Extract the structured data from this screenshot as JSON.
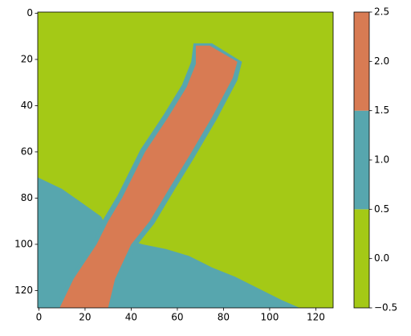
{
  "chart_data": {
    "type": "image",
    "xlim": [
      -0.5,
      127.5
    ],
    "ylim": [
      127.5,
      -0.5
    ],
    "xticks": [
      0,
      20,
      40,
      60,
      80,
      100,
      120
    ],
    "yticks": [
      0,
      20,
      40,
      60,
      80,
      100,
      120
    ],
    "background_value": 0,
    "regions": [
      {
        "value": 1,
        "polygon": [
          [
            -0.5,
            71
          ],
          [
            10,
            76
          ],
          [
            20,
            83
          ],
          [
            27,
            88
          ],
          [
            29,
            92
          ],
          [
            38,
            98
          ],
          [
            45,
            100
          ],
          [
            55,
            102
          ],
          [
            65,
            105
          ],
          [
            75,
            110
          ],
          [
            85,
            114
          ],
          [
            95,
            119
          ],
          [
            105,
            124
          ],
          [
            113,
            127.5
          ],
          [
            -0.5,
            127.5
          ]
        ]
      },
      {
        "value": 1,
        "polygon": [
          [
            67,
            13
          ],
          [
            75,
            13
          ],
          [
            88,
            21
          ],
          [
            86,
            29
          ],
          [
            77,
            46
          ],
          [
            67,
            63
          ],
          [
            59,
            76
          ],
          [
            50,
            91
          ],
          [
            42,
            101
          ],
          [
            35,
            116
          ],
          [
            31,
            127.5
          ],
          [
            7,
            127.5
          ],
          [
            13,
            115
          ],
          [
            23,
            100
          ],
          [
            28,
            89
          ],
          [
            34,
            79
          ],
          [
            44,
            59
          ],
          [
            54,
            44
          ],
          [
            62,
            31
          ],
          [
            66,
            21
          ]
        ]
      },
      {
        "value": 2,
        "polygon": [
          [
            68,
            14
          ],
          [
            74,
            14
          ],
          [
            86,
            21
          ],
          [
            84,
            28
          ],
          [
            75,
            45
          ],
          [
            65,
            62
          ],
          [
            57,
            75
          ],
          [
            48,
            90
          ],
          [
            40,
            100
          ],
          [
            33,
            115
          ],
          [
            30,
            127.5
          ],
          [
            9,
            127.5
          ],
          [
            15,
            115
          ],
          [
            25,
            100
          ],
          [
            30,
            90
          ],
          [
            36,
            80
          ],
          [
            46,
            60
          ],
          [
            56,
            45
          ],
          [
            64,
            32
          ],
          [
            68,
            22
          ]
        ]
      }
    ],
    "colorbar": {
      "levels": [
        0,
        1,
        2
      ],
      "bounds": [
        -0.5,
        0.5,
        1.5,
        2.5
      ],
      "colors": [
        "#a4c916",
        "#57a6ae",
        "#d87b53"
      ],
      "ticks": [
        {
          "value": -0.5,
          "label": "−0.5"
        },
        {
          "value": 0,
          "label": "0.0"
        },
        0.5,
        {
          "value": 1,
          "label": "1.0"
        },
        1.5,
        {
          "value": 2,
          "label": "2.0"
        },
        2.5
      ]
    }
  }
}
